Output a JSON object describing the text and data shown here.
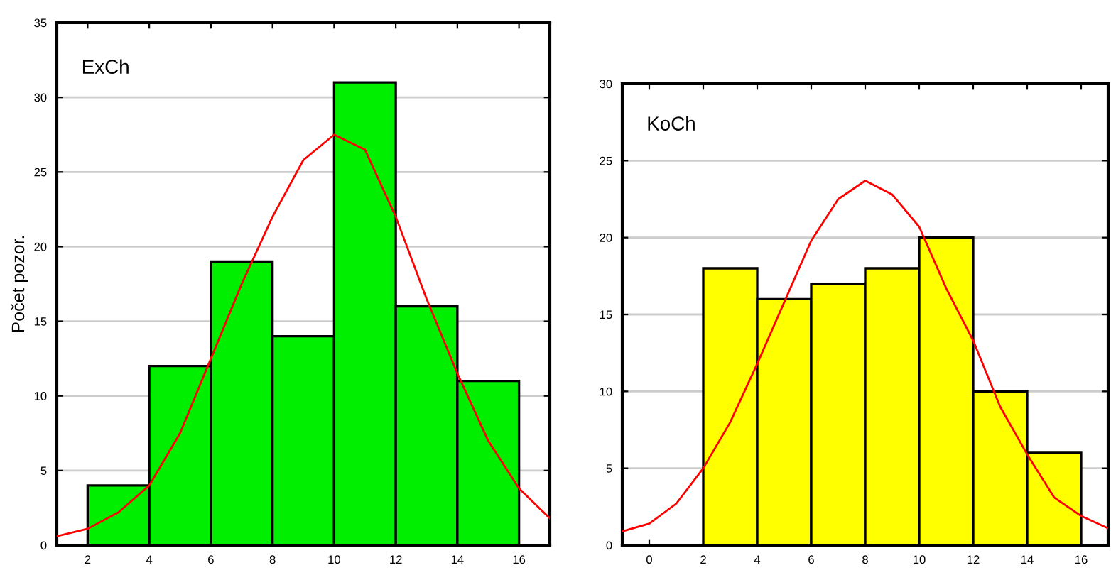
{
  "chart_data": [
    {
      "type": "histogram",
      "title": "ExCh",
      "ylabel": "Počet pozor.",
      "bins": [
        2,
        4,
        6,
        8,
        10,
        12,
        14,
        16
      ],
      "values": [
        4,
        12,
        19,
        14,
        31,
        16,
        11
      ],
      "color": "#00ee00",
      "series": [
        {
          "type": "line",
          "color": "#ff0000",
          "x": [
            1,
            2,
            3,
            4,
            5,
            6,
            7,
            8,
            9,
            10,
            11,
            12,
            13,
            14,
            15,
            16,
            17
          ],
          "values": [
            0.6,
            1.1,
            2.2,
            4,
            7.5,
            12.5,
            17.5,
            22,
            25.8,
            27.5,
            26.5,
            22,
            16.5,
            11.5,
            7,
            3.8,
            1.8
          ]
        }
      ],
      "xlim": [
        1,
        17
      ],
      "xticks": [
        2,
        4,
        6,
        8,
        10,
        12,
        14,
        16
      ],
      "ylim": [
        0,
        35
      ],
      "yticks": [
        0,
        5,
        10,
        15,
        20,
        25,
        30,
        35
      ],
      "grid": "y"
    },
    {
      "type": "histogram",
      "title": "KoCh",
      "bins": [
        2,
        4,
        6,
        8,
        10,
        12,
        14,
        16
      ],
      "values": [
        18,
        16,
        17,
        18,
        20,
        10,
        6
      ],
      "color": "#ffff00",
      "series": [
        {
          "type": "line",
          "color": "#ff0000",
          "x": [
            -1,
            0,
            1,
            2,
            3,
            4,
            5,
            6,
            7,
            8,
            9,
            10,
            11,
            12,
            13,
            14,
            15,
            16,
            17
          ],
          "values": [
            0.9,
            1.4,
            2.7,
            5,
            8,
            11.8,
            15.8,
            19.8,
            22.5,
            23.7,
            22.8,
            20.7,
            16.7,
            13.3,
            9,
            5.9,
            3.1,
            1.9,
            1.1
          ]
        }
      ],
      "xlim": [
        -1,
        17
      ],
      "xticks": [
        0,
        2,
        4,
        6,
        8,
        10,
        12,
        14,
        16
      ],
      "ylim": [
        0,
        30
      ],
      "yticks": [
        0,
        5,
        10,
        15,
        20,
        25,
        30
      ],
      "grid": "y"
    }
  ]
}
